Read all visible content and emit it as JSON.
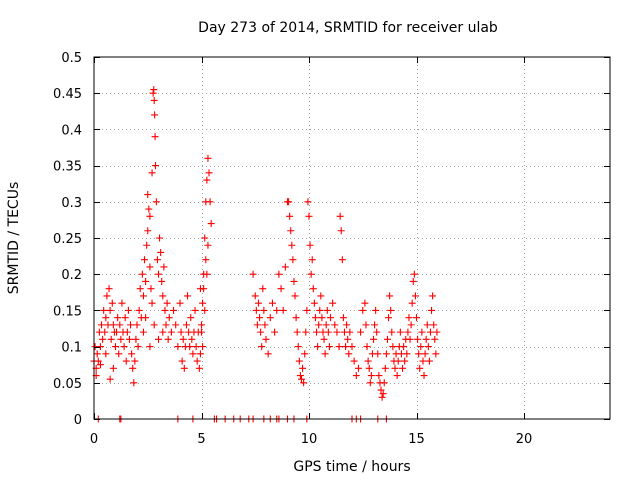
{
  "chart_data": {
    "type": "scatter",
    "title": "Day 273 of 2014, SRMTID for receiver ulab",
    "xlabel": "GPS time / hours",
    "ylabel": "SRMTID / TECUs",
    "xlim": [
      0,
      24
    ],
    "ylim": [
      0,
      0.5
    ],
    "grid": true,
    "marker": "+",
    "color": "#ff0000",
    "xticks": [
      {
        "value": 0,
        "label": "0"
      },
      {
        "value": 5,
        "label": "5"
      },
      {
        "value": 10,
        "label": "10"
      },
      {
        "value": 15,
        "label": "15"
      },
      {
        "value": 20,
        "label": "20"
      }
    ],
    "yticks": [
      {
        "value": 0,
        "label": "0"
      },
      {
        "value": 0.05,
        "label": "0.05"
      },
      {
        "value": 0.1,
        "label": "0.1"
      },
      {
        "value": 0.15,
        "label": "0.15"
      },
      {
        "value": 0.2,
        "label": "0.2"
      },
      {
        "value": 0.25,
        "label": "0.25"
      },
      {
        "value": 0.3,
        "label": "0.3"
      },
      {
        "value": 0.35,
        "label": "0.35"
      },
      {
        "value": 0.4,
        "label": "0.4"
      },
      {
        "value": 0.45,
        "label": "0.45"
      },
      {
        "value": 0.5,
        "label": "0.5"
      }
    ],
    "series": [
      {
        "name": "SRMTID",
        "points": [
          [
            0.0,
            0.08
          ],
          [
            0.05,
            0.1
          ],
          [
            0.1,
            0.07
          ],
          [
            0.15,
            0.09
          ],
          [
            0.2,
            0.08
          ],
          [
            0.25,
            0.12
          ],
          [
            0.3,
            0.1
          ],
          [
            0.35,
            0.13
          ],
          [
            0.4,
            0.11
          ],
          [
            0.45,
            0.15
          ],
          [
            0.5,
            0.12
          ],
          [
            0.55,
            0.14
          ],
          [
            0.6,
            0.17
          ],
          [
            0.65,
            0.13
          ],
          [
            0.7,
            0.18
          ],
          [
            0.75,
            0.15
          ],
          [
            0.8,
            0.11
          ],
          [
            0.85,
            0.16
          ],
          [
            0.9,
            0.13
          ],
          [
            0.95,
            0.12
          ],
          [
            0.1,
            0.06
          ],
          [
            0.3,
            0.075
          ],
          [
            0.55,
            0.09
          ],
          [
            0.75,
            0.055
          ],
          [
            0.9,
            0.07
          ],
          [
            1.0,
            0.1
          ],
          [
            1.05,
            0.12
          ],
          [
            1.1,
            0.14
          ],
          [
            1.15,
            0.09
          ],
          [
            1.2,
            0.13
          ],
          [
            1.25,
            0.11
          ],
          [
            1.3,
            0.16
          ],
          [
            1.35,
            0.12
          ],
          [
            1.4,
            0.1
          ],
          [
            1.45,
            0.14
          ],
          [
            1.5,
            0.08
          ],
          [
            1.55,
            0.12
          ],
          [
            1.6,
            0.15
          ],
          [
            1.65,
            0.11
          ],
          [
            1.7,
            0.13
          ],
          [
            1.75,
            0.09
          ],
          [
            1.8,
            0.07
          ],
          [
            1.85,
            0.05
          ],
          [
            1.9,
            0.08
          ],
          [
            1.95,
            0.11
          ],
          [
            2.0,
            0.13
          ],
          [
            2.05,
            0.1
          ],
          [
            2.1,
            0.15
          ],
          [
            2.15,
            0.18
          ],
          [
            2.2,
            0.14
          ],
          [
            2.25,
            0.2
          ],
          [
            2.3,
            0.17
          ],
          [
            2.35,
            0.22
          ],
          [
            2.4,
            0.19
          ],
          [
            2.45,
            0.24
          ],
          [
            2.5,
            0.26
          ],
          [
            2.55,
            0.29
          ],
          [
            2.6,
            0.21
          ],
          [
            2.65,
            0.18
          ],
          [
            2.7,
            0.16
          ],
          [
            2.75,
            0.45
          ],
          [
            2.78,
            0.455
          ],
          [
            2.8,
            0.44
          ],
          [
            2.82,
            0.42
          ],
          [
            2.84,
            0.39
          ],
          [
            2.86,
            0.35
          ],
          [
            2.7,
            0.34
          ],
          [
            2.5,
            0.31
          ],
          [
            2.6,
            0.28
          ],
          [
            2.9,
            0.3
          ],
          [
            2.95,
            0.22
          ],
          [
            3.0,
            0.2
          ],
          [
            3.05,
            0.25
          ],
          [
            3.1,
            0.23
          ],
          [
            3.15,
            0.19
          ],
          [
            3.2,
            0.17
          ],
          [
            3.25,
            0.21
          ],
          [
            3.3,
            0.15
          ],
          [
            3.35,
            0.13
          ],
          [
            3.4,
            0.16
          ],
          [
            2.3,
            0.12
          ],
          [
            2.4,
            0.14
          ],
          [
            2.6,
            0.1
          ],
          [
            2.8,
            0.13
          ],
          [
            3.0,
            0.11
          ],
          [
            3.2,
            0.12
          ],
          [
            3.45,
            0.11
          ],
          [
            3.5,
            0.14
          ],
          [
            3.6,
            0.12
          ],
          [
            3.7,
            0.15
          ],
          [
            3.8,
            0.13
          ],
          [
            3.9,
            0.1
          ],
          [
            4.0,
            0.16
          ],
          [
            4.05,
            0.12
          ],
          [
            4.1,
            0.08
          ],
          [
            4.15,
            0.11
          ],
          [
            4.2,
            0.07
          ],
          [
            4.25,
            0.1
          ],
          [
            4.3,
            0.13
          ],
          [
            4.35,
            0.17
          ],
          [
            4.4,
            0.12
          ],
          [
            4.45,
            0.1
          ],
          [
            4.5,
            0.14
          ],
          [
            4.55,
            0.11
          ],
          [
            4.6,
            0.09
          ],
          [
            4.65,
            0.12
          ],
          [
            4.7,
            0.15
          ],
          [
            4.75,
            0.1
          ],
          [
            4.8,
            0.08
          ],
          [
            4.85,
            0.12
          ],
          [
            4.9,
            0.07
          ],
          [
            4.95,
            0.09
          ],
          [
            5.0,
            0.13
          ],
          [
            5.05,
            0.16
          ],
          [
            5.1,
            0.2
          ],
          [
            5.15,
            0.25
          ],
          [
            5.2,
            0.3
          ],
          [
            5.25,
            0.33
          ],
          [
            5.3,
            0.36
          ],
          [
            5.35,
            0.34
          ],
          [
            5.4,
            0.3
          ],
          [
            5.45,
            0.27
          ],
          [
            5.2,
            0.22
          ],
          [
            5.1,
            0.18
          ],
          [
            5.3,
            0.24
          ],
          [
            5.0,
            0.12
          ],
          [
            5.05,
            0.1
          ],
          [
            4.95,
            0.18
          ],
          [
            5.15,
            0.15
          ],
          [
            5.25,
            0.2
          ],
          [
            7.4,
            0.2
          ],
          [
            7.5,
            0.17
          ],
          [
            7.55,
            0.15
          ],
          [
            7.6,
            0.13
          ],
          [
            7.65,
            0.16
          ],
          [
            7.7,
            0.14
          ],
          [
            7.75,
            0.12
          ],
          [
            7.8,
            0.1
          ],
          [
            7.85,
            0.18
          ],
          [
            7.9,
            0.15
          ],
          [
            7.95,
            0.13
          ],
          [
            8.0,
            0.11
          ],
          [
            8.1,
            0.09
          ],
          [
            8.2,
            0.14
          ],
          [
            8.3,
            0.16
          ],
          [
            8.4,
            0.12
          ],
          [
            8.5,
            0.15
          ],
          [
            8.6,
            0.2
          ],
          [
            8.7,
            0.18
          ],
          [
            8.8,
            0.15
          ],
          [
            8.9,
            0.21
          ],
          [
            9.0,
            0.3
          ],
          [
            9.05,
            0.3
          ],
          [
            9.1,
            0.28
          ],
          [
            9.15,
            0.26
          ],
          [
            9.2,
            0.24
          ],
          [
            9.25,
            0.22
          ],
          [
            9.3,
            0.19
          ],
          [
            9.35,
            0.17
          ],
          [
            9.4,
            0.14
          ],
          [
            9.45,
            0.12
          ],
          [
            9.5,
            0.1
          ],
          [
            9.55,
            0.08
          ],
          [
            9.6,
            0.06
          ],
          [
            9.65,
            0.055
          ],
          [
            9.7,
            0.07
          ],
          [
            9.75,
            0.05
          ],
          [
            9.8,
            0.09
          ],
          [
            9.85,
            0.12
          ],
          [
            9.9,
            0.15
          ],
          [
            9.95,
            0.3
          ],
          [
            10.0,
            0.28
          ],
          [
            10.05,
            0.24
          ],
          [
            10.1,
            0.2
          ],
          [
            10.15,
            0.22
          ],
          [
            10.2,
            0.18
          ],
          [
            10.25,
            0.16
          ],
          [
            10.3,
            0.14
          ],
          [
            10.35,
            0.12
          ],
          [
            10.4,
            0.1
          ],
          [
            10.45,
            0.13
          ],
          [
            10.5,
            0.15
          ],
          [
            10.55,
            0.17
          ],
          [
            10.6,
            0.14
          ],
          [
            10.65,
            0.12
          ],
          [
            10.7,
            0.11
          ],
          [
            10.75,
            0.09
          ],
          [
            10.8,
            0.13
          ],
          [
            10.85,
            0.15
          ],
          [
            10.9,
            0.12
          ],
          [
            10.95,
            0.1
          ],
          [
            11.0,
            0.14
          ],
          [
            11.1,
            0.16
          ],
          [
            11.2,
            0.13
          ],
          [
            11.3,
            0.12
          ],
          [
            11.4,
            0.1
          ],
          [
            11.45,
            0.28
          ],
          [
            11.5,
            0.26
          ],
          [
            11.55,
            0.22
          ],
          [
            11.6,
            0.14
          ],
          [
            11.65,
            0.12
          ],
          [
            11.7,
            0.1
          ],
          [
            11.75,
            0.13
          ],
          [
            11.8,
            0.11
          ],
          [
            11.85,
            0.09
          ],
          [
            11.9,
            0.12
          ],
          [
            12.0,
            0.1
          ],
          [
            12.1,
            0.08
          ],
          [
            12.2,
            0.06
          ],
          [
            12.3,
            0.07
          ],
          [
            12.4,
            0.12
          ],
          [
            12.5,
            0.15
          ],
          [
            12.6,
            0.16
          ],
          [
            12.65,
            0.13
          ],
          [
            12.7,
            0.1
          ],
          [
            12.75,
            0.08
          ],
          [
            12.8,
            0.07
          ],
          [
            12.85,
            0.05
          ],
          [
            12.9,
            0.06
          ],
          [
            12.95,
            0.09
          ],
          [
            13.0,
            0.11
          ],
          [
            13.05,
            0.13
          ],
          [
            13.1,
            0.15
          ],
          [
            13.15,
            0.12
          ],
          [
            13.2,
            0.09
          ],
          [
            13.25,
            0.06
          ],
          [
            13.3,
            0.05
          ],
          [
            13.35,
            0.04
          ],
          [
            13.4,
            0.03
          ],
          [
            13.45,
            0.035
          ],
          [
            13.5,
            0.05
          ],
          [
            13.55,
            0.07
          ],
          [
            13.6,
            0.09
          ],
          [
            13.65,
            0.11
          ],
          [
            13.7,
            0.14
          ],
          [
            13.75,
            0.17
          ],
          [
            13.8,
            0.15
          ],
          [
            13.85,
            0.12
          ],
          [
            13.9,
            0.1
          ],
          [
            13.95,
            0.08
          ],
          [
            14.0,
            0.07
          ],
          [
            14.05,
            0.09
          ],
          [
            14.1,
            0.06
          ],
          [
            14.15,
            0.08
          ],
          [
            14.2,
            0.1
          ],
          [
            14.25,
            0.12
          ],
          [
            14.3,
            0.09
          ],
          [
            14.35,
            0.07
          ],
          [
            14.4,
            0.1
          ],
          [
            14.45,
            0.08
          ],
          [
            14.5,
            0.11
          ],
          [
            14.55,
            0.09
          ],
          [
            14.6,
            0.12
          ],
          [
            14.65,
            0.14
          ],
          [
            14.7,
            0.11
          ],
          [
            14.75,
            0.13
          ],
          [
            14.8,
            0.16
          ],
          [
            14.85,
            0.19
          ],
          [
            14.9,
            0.2
          ],
          [
            14.95,
            0.17
          ],
          [
            15.0,
            0.14
          ],
          [
            15.05,
            0.11
          ],
          [
            15.1,
            0.09
          ],
          [
            15.15,
            0.07
          ],
          [
            15.2,
            0.1
          ],
          [
            15.25,
            0.12
          ],
          [
            15.3,
            0.08
          ],
          [
            15.35,
            0.06
          ],
          [
            15.4,
            0.09
          ],
          [
            15.45,
            0.11
          ],
          [
            15.5,
            0.13
          ],
          [
            15.55,
            0.1
          ],
          [
            15.6,
            0.08
          ],
          [
            15.65,
            0.12
          ],
          [
            15.7,
            0.15
          ],
          [
            15.75,
            0.17
          ],
          [
            15.8,
            0.13
          ],
          [
            15.85,
            0.11
          ],
          [
            15.9,
            0.09
          ],
          [
            15.95,
            0.12
          ],
          [
            0.2,
            0.0
          ],
          [
            1.2,
            0.0
          ],
          [
            1.25,
            0.0
          ],
          [
            3.9,
            0.0
          ],
          [
            4.6,
            0.0
          ],
          [
            5.6,
            0.0
          ],
          [
            5.7,
            0.0
          ],
          [
            6.1,
            0.0
          ],
          [
            6.5,
            0.0
          ],
          [
            6.8,
            0.0
          ],
          [
            7.2,
            0.0
          ],
          [
            7.4,
            0.0
          ],
          [
            7.9,
            0.0
          ],
          [
            8.2,
            0.0
          ],
          [
            8.5,
            0.0
          ],
          [
            8.6,
            0.0
          ],
          [
            9.0,
            0.0
          ],
          [
            9.3,
            0.0
          ],
          [
            9.9,
            0.0
          ],
          [
            12.0,
            0.0
          ],
          [
            12.2,
            0.0
          ],
          [
            12.4,
            0.0
          ],
          [
            13.2,
            0.0
          ],
          [
            13.6,
            0.0
          ]
        ]
      }
    ]
  }
}
